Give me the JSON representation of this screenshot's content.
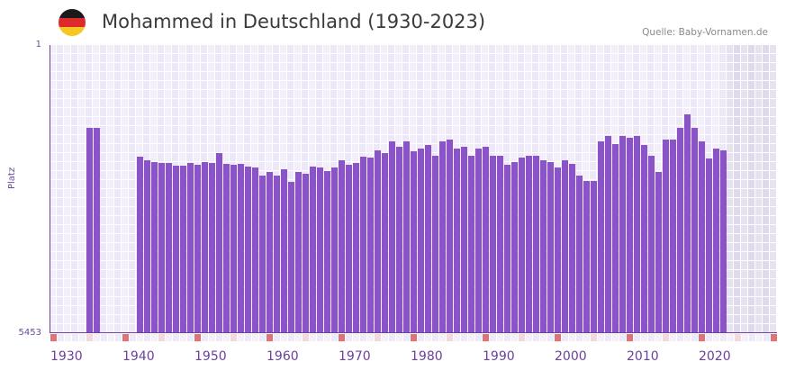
{
  "header": {
    "title": "Mohammed in Deutschland (1930-2023)",
    "source": "Quelle: Baby-Vornamen.de",
    "flag_colors": [
      "#1a1a1a",
      "#dd2a2a",
      "#f7c623"
    ]
  },
  "colors": {
    "bar": "#8a54c8",
    "axis": "#6e3fa3",
    "grid_a": "#f2effb",
    "grid_b": "#ece8f8",
    "future_a": "#e6e2f0",
    "future_b": "#dedaeb",
    "marker_decade": "#e07378",
    "marker_half": "#f5d8de",
    "tick_text": "#6b3fa0"
  },
  "chart_data": {
    "type": "bar",
    "title": "Mohammed in Deutschland (1930-2023)",
    "xlabel": "",
    "ylabel": "Platz",
    "y_scale": "log",
    "y_inverted": true,
    "ylim": [
      1,
      5453
    ],
    "yticks": [
      "1",
      "5453"
    ],
    "x_range": [
      1930,
      2030
    ],
    "xticks": [
      "1930",
      "1940",
      "1950",
      "1960",
      "1970",
      "1980",
      "1990",
      "2000",
      "2010",
      "2020"
    ],
    "future_from": 2024,
    "grid": true,
    "legend": null,
    "x": [
      1935,
      1936,
      1942,
      1943,
      1944,
      1945,
      1946,
      1947,
      1948,
      1949,
      1950,
      1951,
      1952,
      1953,
      1954,
      1955,
      1956,
      1957,
      1958,
      1959,
      1960,
      1961,
      1962,
      1963,
      1964,
      1965,
      1966,
      1967,
      1968,
      1969,
      1970,
      1971,
      1972,
      1973,
      1974,
      1975,
      1976,
      1977,
      1978,
      1979,
      1980,
      1981,
      1982,
      1983,
      1984,
      1985,
      1986,
      1987,
      1988,
      1989,
      1990,
      1991,
      1992,
      1993,
      1994,
      1995,
      1996,
      1997,
      1998,
      1999,
      2000,
      2001,
      2002,
      2003,
      2004,
      2005,
      2006,
      2007,
      2008,
      2009,
      2010,
      2011,
      2012,
      2013,
      2014,
      2015,
      2016,
      2017,
      2018,
      2019,
      2020,
      2021,
      2022,
      2023
    ],
    "values": [
      12,
      12,
      28,
      31,
      33,
      34,
      34,
      37,
      37,
      34,
      36,
      33,
      34,
      25,
      35,
      36,
      35,
      38,
      39,
      49,
      44,
      49,
      41,
      60,
      44,
      47,
      38,
      39,
      43,
      39,
      31,
      36,
      34,
      28,
      29,
      23,
      25,
      18,
      21,
      18,
      24,
      22,
      20,
      27,
      18,
      17,
      22,
      21,
      27,
      22,
      21,
      27,
      27,
      36,
      33,
      29,
      27,
      27,
      31,
      33,
      39,
      31,
      35,
      49,
      58,
      58,
      18,
      15,
      19,
      15,
      16,
      15,
      20,
      27,
      44,
      17,
      17,
      12,
      8,
      12,
      18,
      30,
      22,
      23
    ]
  }
}
